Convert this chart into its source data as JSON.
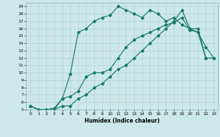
{
  "xlabel": "Humidex (Indice chaleur)",
  "bg_color": "#cde8e8",
  "line_color": "#1a7a6e",
  "grid_color": "#aacccc",
  "xlim": [
    -0.5,
    23.5
  ],
  "ylim": [
    5,
    19.5
  ],
  "xticks": [
    0,
    1,
    2,
    3,
    4,
    5,
    6,
    7,
    8,
    9,
    10,
    11,
    12,
    13,
    14,
    15,
    16,
    17,
    18,
    19,
    20,
    21,
    22,
    23
  ],
  "yticks": [
    5,
    6,
    7,
    8,
    9,
    10,
    11,
    12,
    13,
    14,
    15,
    16,
    17,
    18,
    19
  ],
  "line3_x": [
    0,
    1,
    2,
    3,
    4,
    5,
    6,
    7,
    8,
    9,
    10,
    11,
    12,
    13,
    14,
    15,
    16,
    17,
    18,
    19,
    20,
    21,
    22,
    23
  ],
  "line3_y": [
    5.5,
    5.0,
    5.0,
    5.2,
    6.5,
    9.8,
    15.5,
    16.0,
    17.0,
    17.5,
    17.8,
    19.0,
    18.5,
    18.0,
    17.5,
    18.5,
    18.0,
    17.0,
    17.5,
    16.5,
    16.0,
    15.5,
    13.5,
    12.0
  ],
  "line1_x": [
    0,
    1,
    2,
    3,
    4,
    5,
    6,
    7,
    8,
    9,
    10,
    11,
    12,
    13,
    14,
    15,
    16,
    17,
    18,
    19,
    20,
    21,
    22
  ],
  "line1_y": [
    5.5,
    5.0,
    5.0,
    5.0,
    6.5,
    6.8,
    7.5,
    9.5,
    10.0,
    10.0,
    10.5,
    12.0,
    13.5,
    14.5,
    15.0,
    15.5,
    16.0,
    16.5,
    16.8,
    17.5,
    15.8,
    15.5,
    12.0
  ],
  "line2_x": [
    0,
    1,
    2,
    3,
    4,
    5,
    6,
    7,
    8,
    9,
    10,
    11,
    12,
    13,
    14,
    15,
    16,
    17,
    18,
    19,
    20,
    21,
    22,
    23
  ],
  "line2_y": [
    5.5,
    5.0,
    5.0,
    5.0,
    5.5,
    5.5,
    6.5,
    7.0,
    8.0,
    8.5,
    9.5,
    10.5,
    11.0,
    12.0,
    13.0,
    14.0,
    15.0,
    16.0,
    17.0,
    18.5,
    16.0,
    16.0,
    12.0,
    12.0
  ]
}
